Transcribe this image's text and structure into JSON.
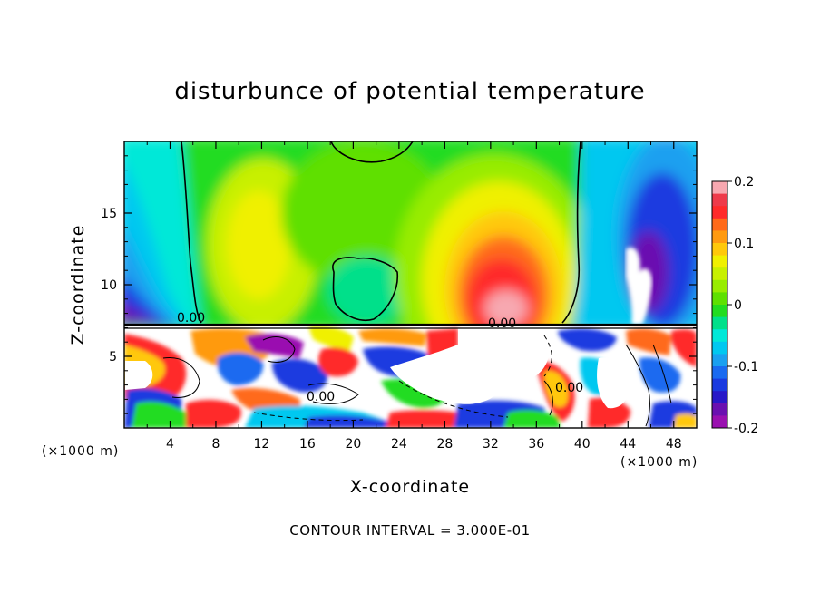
{
  "chart_data": {
    "type": "heatmap",
    "title": "disturbunce of potential temperature",
    "xlabel": "X-coordinate",
    "ylabel": "Z-coordinate",
    "x_unit_left": "(×1000 m)",
    "x_unit_right": "(×1000 m)",
    "footnote": "CONTOUR INTERVAL = 3.000E-01",
    "xlim": [
      0,
      50
    ],
    "ylim": [
      0,
      20
    ],
    "x_ticks": [
      4,
      8,
      12,
      16,
      20,
      24,
      28,
      32,
      36,
      40,
      44,
      48
    ],
    "y_ticks": [
      5,
      10,
      15
    ],
    "colorbar": {
      "min": -0.2,
      "max": 0.2,
      "ticks": [
        "0.2",
        "0.1",
        "0",
        "-0.1",
        "-0.2"
      ],
      "colors": [
        "#f7a8b0",
        "#ee3a4a",
        "#ff2a2a",
        "#ff6a1a",
        "#ff9a10",
        "#ffc80a",
        "#f0f000",
        "#c8f000",
        "#98ec00",
        "#5ee000",
        "#22dc20",
        "#00e08a",
        "#00e8d8",
        "#00c8f0",
        "#1aa0f0",
        "#1a6af0",
        "#1a3ae0",
        "#2818c8",
        "#6a10b0",
        "#9a10b0"
      ]
    },
    "contour_labels": [
      "0.00",
      "0.00",
      "0.00",
      "0.00"
    ]
  }
}
